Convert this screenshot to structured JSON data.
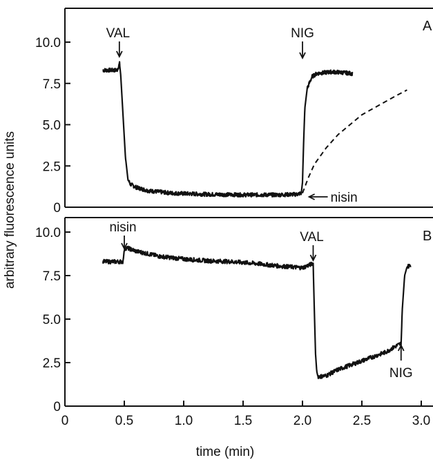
{
  "chart_data": [
    {
      "panel": "A",
      "type": "line",
      "xlabel": "time (min)",
      "ylabel": "arbitrary fluorescence units",
      "xlim": [
        0,
        3.0
      ],
      "ylim": [
        0,
        12
      ],
      "yticks": [
        "10.0",
        "7.5",
        "5.0",
        "2.5",
        "0"
      ],
      "ytick_values": [
        10.0,
        7.5,
        5.0,
        2.5,
        0
      ],
      "grid": false,
      "legend": "none",
      "series": [
        {
          "style": "solid",
          "noise": 0.12,
          "x": [
            0.32,
            0.44,
            0.46,
            0.47,
            0.49,
            0.51,
            0.53,
            0.55,
            0.6,
            0.7,
            0.9,
            1.2,
            1.5,
            1.8,
            1.95,
            1.99,
            2.0,
            2.01,
            2.02,
            2.04,
            2.08,
            2.12,
            2.18,
            2.25,
            2.35,
            2.42
          ],
          "y": [
            8.3,
            8.3,
            8.7,
            8.0,
            5.5,
            3.0,
            1.7,
            1.4,
            1.2,
            1.0,
            0.85,
            0.78,
            0.75,
            0.75,
            0.78,
            0.85,
            1.5,
            4.0,
            6.0,
            7.2,
            7.9,
            8.1,
            8.15,
            8.2,
            8.15,
            8.1
          ]
        },
        {
          "style": "dashed",
          "x": [
            2.0,
            2.05,
            2.1,
            2.2,
            2.3,
            2.4,
            2.5,
            2.6,
            2.7,
            2.8,
            2.88
          ],
          "y": [
            0.85,
            1.8,
            2.6,
            3.6,
            4.4,
            5.0,
            5.6,
            6.0,
            6.4,
            6.8,
            7.1
          ]
        }
      ],
      "annotations": [
        {
          "text": "VAL",
          "x": 0.47,
          "arrow": "down"
        },
        {
          "text": "NIG",
          "x": 2.07,
          "arrow": "down"
        },
        {
          "text": "nisin",
          "x": 2.05,
          "arrow": "left"
        }
      ]
    },
    {
      "panel": "B",
      "type": "line",
      "xlabel": "time (min)",
      "ylabel": "arbitrary fluorescence units",
      "xlim": [
        0,
        3.0
      ],
      "ylim": [
        0,
        11
      ],
      "yticks": [
        "10.0",
        "7.5",
        "5.0",
        "2.5",
        "0"
      ],
      "ytick_values": [
        10.0,
        7.5,
        5.0,
        2.5,
        0
      ],
      "xticks": [
        "0",
        "0.5",
        "1.0",
        "1.5",
        "2.0",
        "2.5",
        "3.0"
      ],
      "xtick_values": [
        0,
        0.5,
        1.0,
        1.5,
        2.0,
        2.5,
        3.0
      ],
      "grid": false,
      "legend": "none",
      "series": [
        {
          "style": "solid",
          "noise": 0.12,
          "x": [
            0.32,
            0.49,
            0.5,
            0.52,
            0.6,
            0.8,
            1.0,
            1.2,
            1.4,
            1.6,
            1.8,
            2.0,
            2.09,
            2.1,
            2.11,
            2.12,
            2.13,
            2.15,
            2.2,
            2.3,
            2.5,
            2.7,
            2.8,
            2.83,
            2.84,
            2.86,
            2.88,
            2.91
          ],
          "y": [
            8.3,
            8.3,
            9.0,
            9.1,
            8.9,
            8.6,
            8.45,
            8.35,
            8.3,
            8.2,
            8.05,
            7.95,
            8.2,
            5.5,
            3.0,
            2.0,
            1.7,
            1.7,
            1.75,
            2.1,
            2.6,
            3.1,
            3.5,
            3.6,
            5.5,
            7.5,
            8.0,
            8.1
          ]
        }
      ],
      "annotations": [
        {
          "text": "nisin",
          "x": 0.5,
          "arrow": "down"
        },
        {
          "text": "VAL",
          "x": 2.09,
          "arrow": "down"
        },
        {
          "text": "NIG",
          "x": 2.83,
          "arrow": "up"
        }
      ]
    }
  ],
  "panel_labels": [
    "A",
    "B"
  ]
}
